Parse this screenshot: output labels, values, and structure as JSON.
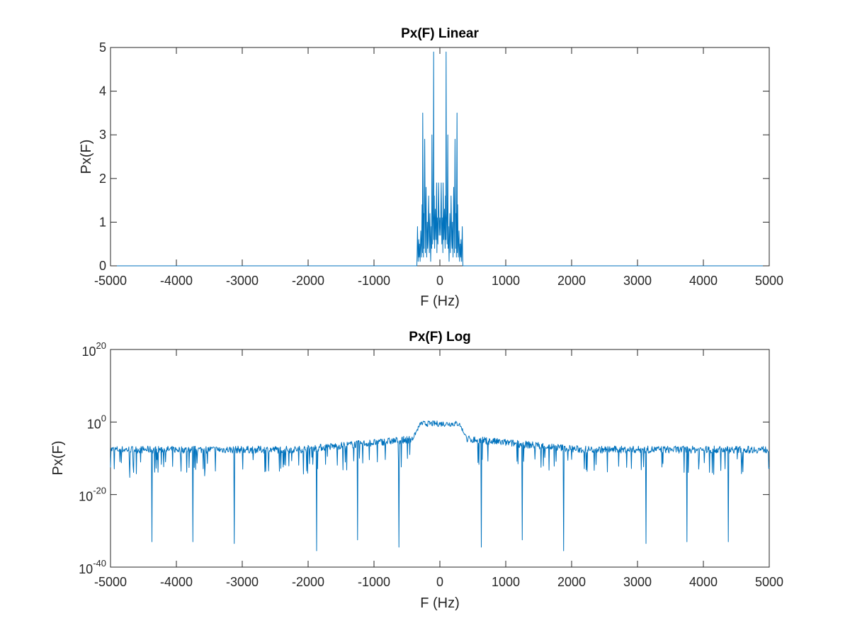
{
  "chart_data": [
    {
      "type": "line",
      "title": "Px(F) Linear",
      "xlabel": "F (Hz)",
      "ylabel": "Px(F)",
      "xlim": [
        -5000,
        5000
      ],
      "ylim": [
        0,
        5
      ],
      "yscale": "linear",
      "grid": false,
      "xticks": [
        -5000,
        -4000,
        -3000,
        -2000,
        -1000,
        0,
        1000,
        2000,
        3000,
        4000,
        5000
      ],
      "xtick_labels": [
        "-5000",
        "-4000",
        "-3000",
        "-2000",
        "-1000",
        "0",
        "1000",
        "2000",
        "3000",
        "4000",
        "5000"
      ],
      "yticks": [
        0,
        1,
        2,
        3,
        4,
        5
      ],
      "ytick_labels": [
        "0",
        "1",
        "2",
        "3",
        "4",
        "5"
      ],
      "color": "#0072BD",
      "series": [
        {
          "name": "Px(F)",
          "x": [
            -5000,
            -350,
            -345,
            -340,
            -330,
            -320,
            -315,
            -310,
            -300,
            -290,
            -280,
            -270,
            -265,
            -260,
            -250,
            -245,
            -240,
            -230,
            -220,
            -210,
            -200,
            -190,
            -185,
            -180,
            -170,
            -160,
            -150,
            -140,
            -130,
            -125,
            -120,
            -110,
            -100,
            -95,
            -90,
            -85,
            -80,
            -70,
            -60,
            -50,
            -45,
            -40,
            -30,
            -20,
            -10,
            0,
            10,
            20,
            30,
            40,
            45,
            50,
            60,
            70,
            80,
            85,
            90,
            95,
            100,
            110,
            120,
            125,
            130,
            140,
            150,
            160,
            170,
            180,
            185,
            190,
            200,
            210,
            220,
            230,
            240,
            245,
            250,
            260,
            265,
            270,
            280,
            290,
            300,
            310,
            315,
            320,
            330,
            340,
            345,
            350,
            5000
          ],
          "y": [
            0,
            0,
            0.3,
            0.9,
            0.1,
            0.6,
            0.2,
            0.5,
            0.1,
            0.8,
            0.2,
            1.4,
            0.3,
            3.5,
            0.2,
            1.2,
            0.4,
            2.9,
            0.3,
            1.8,
            0.2,
            1.0,
            0.4,
            0.6,
            1.6,
            0.3,
            1.2,
            0.1,
            0.9,
            0.4,
            3.0,
            0.5,
            1.2,
            4.9,
            0.6,
            1.6,
            0.4,
            1.3,
            0.6,
            1.9,
            0.3,
            1.1,
            0.5,
            1.9,
            0.7,
            1.1,
            0.7,
            1.9,
            0.5,
            1.1,
            0.3,
            1.9,
            0.6,
            1.3,
            0.4,
            1.6,
            0.6,
            4.9,
            1.2,
            0.5,
            3.0,
            0.4,
            0.9,
            0.1,
            1.2,
            0.3,
            1.6,
            0.6,
            0.4,
            1.0,
            0.2,
            1.8,
            0.3,
            2.9,
            0.4,
            1.2,
            0.2,
            3.5,
            0.3,
            1.4,
            0.2,
            0.8,
            0.1,
            0.5,
            0.2,
            0.6,
            0.1,
            0.9,
            0.3,
            0,
            0
          ]
        }
      ]
    },
    {
      "type": "line",
      "title": "Px(F) Log",
      "xlabel": "F (Hz)",
      "ylabel": "Px(F)",
      "xlim": [
        -5000,
        5000
      ],
      "ylim": [
        1e-40,
        1e+20
      ],
      "yscale": "log",
      "grid": false,
      "xticks": [
        -5000,
        -4000,
        -3000,
        -2000,
        -1000,
        0,
        1000,
        2000,
        3000,
        4000,
        5000
      ],
      "xtick_labels": [
        "-5000",
        "-4000",
        "-3000",
        "-2000",
        "-1000",
        "0",
        "1000",
        "2000",
        "3000",
        "4000",
        "5000"
      ],
      "yticks": [
        1e-40,
        1e-20,
        1.0,
        1e+20
      ],
      "ytick_labels": [
        {
          "base": "10",
          "exp": "-40"
        },
        {
          "base": "10",
          "exp": "-20"
        },
        {
          "base": "10",
          "exp": "0"
        },
        {
          "base": "10",
          "exp": "20"
        }
      ],
      "color": "#0072BD",
      "series": [
        {
          "name": "Px(F)",
          "log10_floor_approx": -7.5,
          "log10_passband_approx": -0.3,
          "passband_hz": [
            -350,
            350
          ],
          "dips": [
            {
              "x": -5000,
              "log10_y": -12.5
            },
            {
              "x": -4375,
              "log10_y": -33
            },
            {
              "x": -3750,
              "log10_y": -33
            },
            {
              "x": -3125,
              "log10_y": -33.5
            },
            {
              "x": -1875,
              "log10_y": -35.5
            },
            {
              "x": -1250,
              "log10_y": -32.5
            },
            {
              "x": -625,
              "log10_y": -34.5
            },
            {
              "x": 625,
              "log10_y": -34.5
            },
            {
              "x": 1250,
              "log10_y": -32.5
            },
            {
              "x": 1875,
              "log10_y": -35.5
            },
            {
              "x": 3125,
              "log10_y": -33.5
            },
            {
              "x": 3750,
              "log10_y": -33
            },
            {
              "x": 4375,
              "log10_y": -33
            },
            {
              "x": 5000,
              "log10_y": -12.5
            }
          ]
        }
      ]
    }
  ]
}
